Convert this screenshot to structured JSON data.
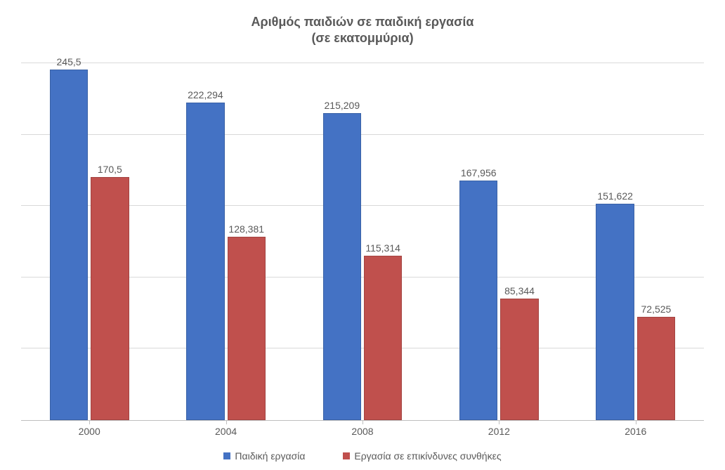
{
  "chart": {
    "type": "bar",
    "title_line1": "Αριθμός παιδιών σε παιδική εργασία",
    "title_line2": "(σε εκατομμύρια)",
    "title_fontsize": 18,
    "title_color": "#595959",
    "background_color": "#ffffff",
    "grid_color": "#d9d9d9",
    "axis_color": "#bfbfbf",
    "label_color": "#595959",
    "label_fontsize": 14,
    "ylim": [
      0,
      250
    ],
    "ytick_step": 50,
    "categories": [
      "2000",
      "2004",
      "2008",
      "2012",
      "2016"
    ],
    "series": [
      {
        "name": "Παιδική εργασία",
        "color": "#4472c4",
        "values": [
          245.5,
          222.294,
          215.209,
          167.956,
          151.622
        ],
        "labels": [
          "245,5",
          "222,294",
          "215,209",
          "167,956",
          "151,622"
        ]
      },
      {
        "name": "Εργασία σε επικίνδυνες συνθήκες",
        "color": "#c0504d",
        "values": [
          170.5,
          128.381,
          115.314,
          85.344,
          72.525
        ],
        "labels": [
          "170,5",
          "128,381",
          "115,314",
          "85,344",
          "72,525"
        ]
      }
    ],
    "bar_width_pct": 28,
    "group_gap_pct": 2
  }
}
